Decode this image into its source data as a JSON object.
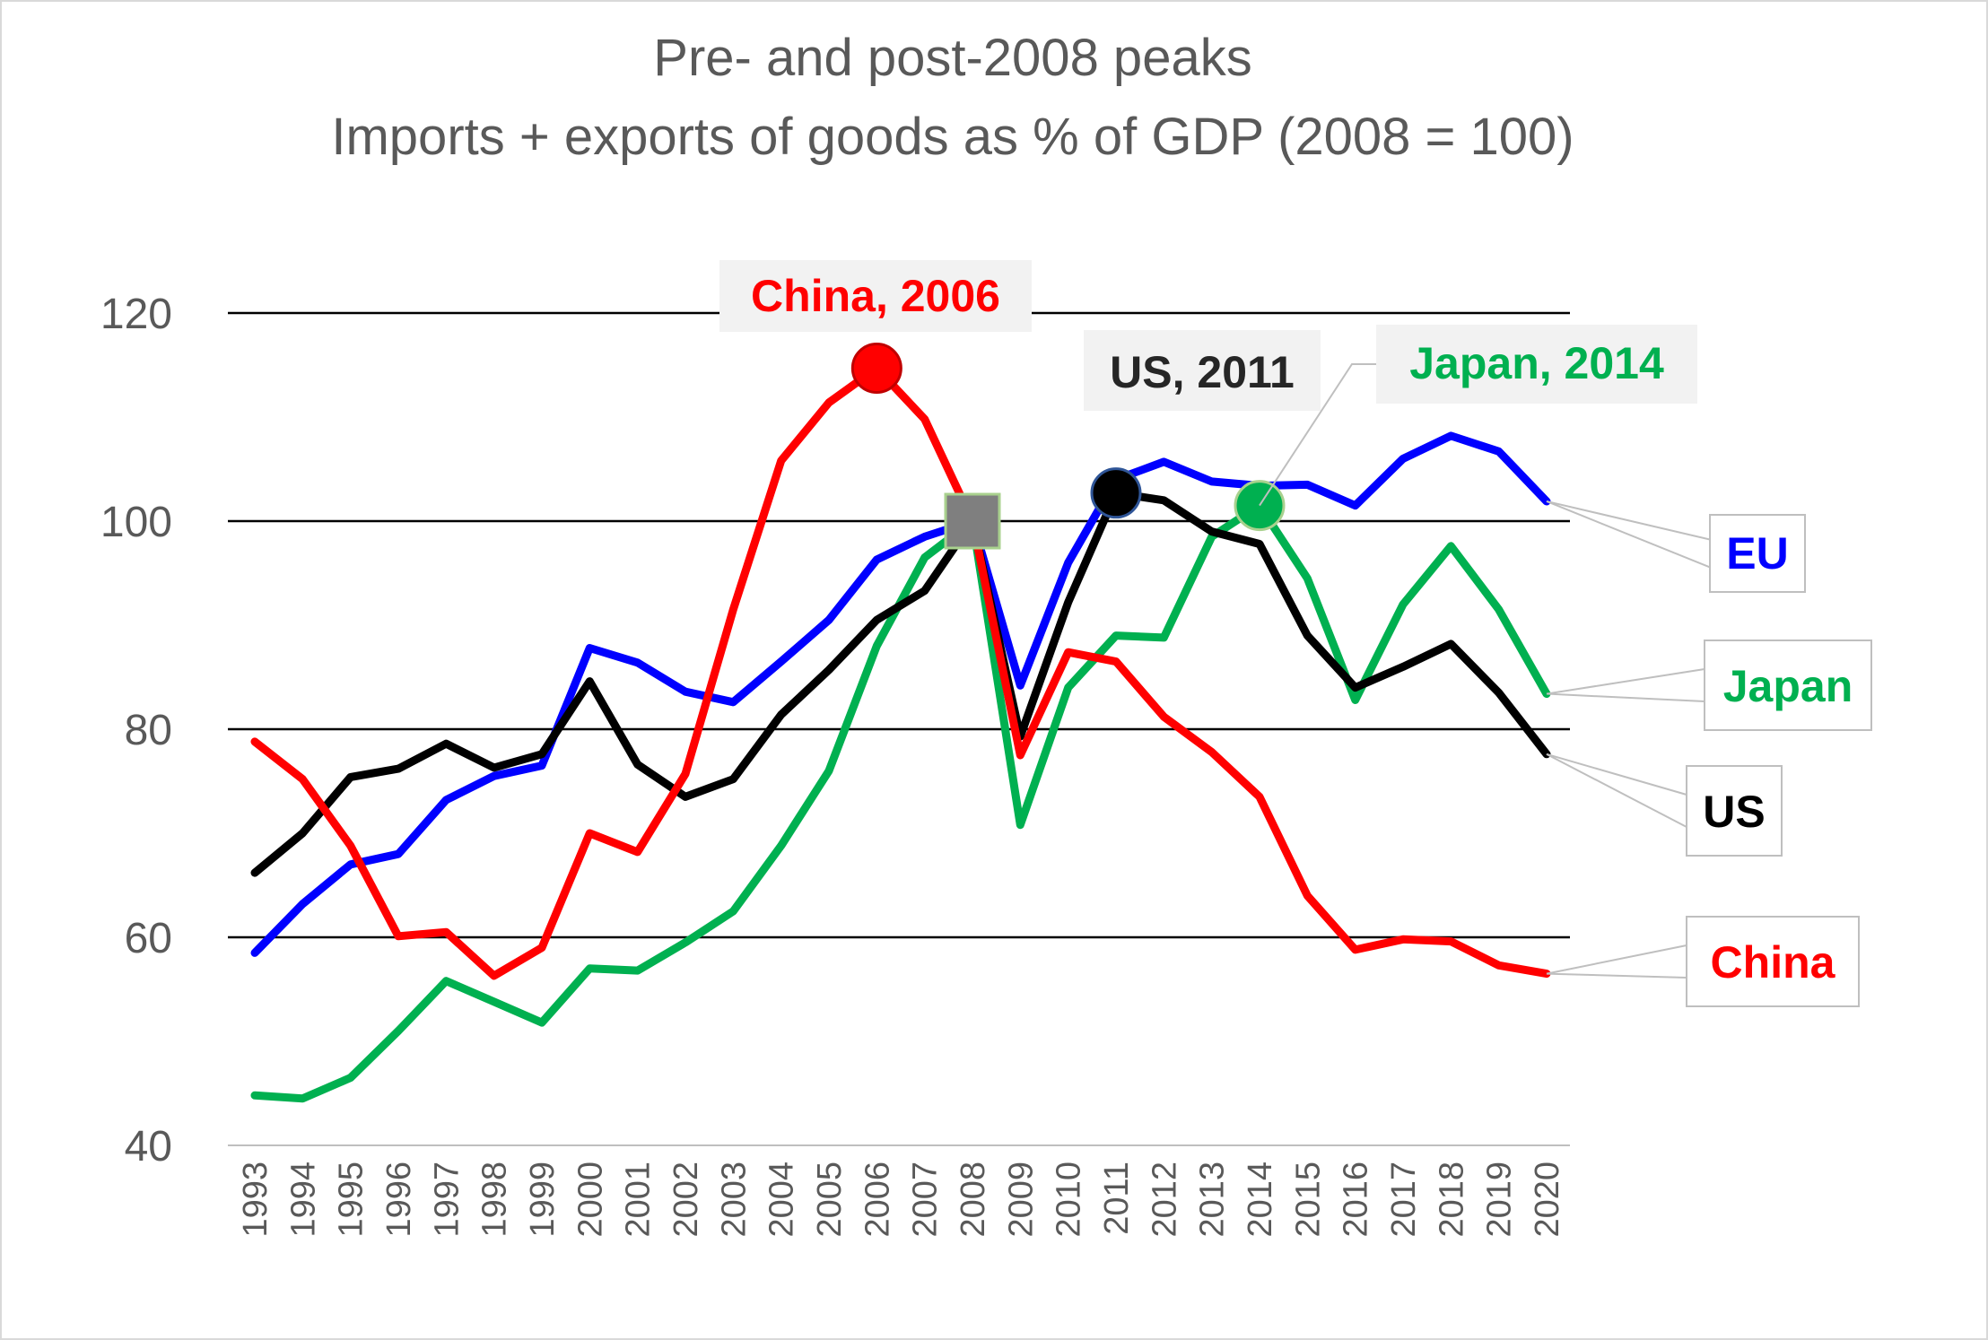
{
  "chart_data": {
    "type": "line",
    "title": "Pre- and post-2008 peaks",
    "subtitle": "Imports + exports of goods as % of GDP (2008 = 100)",
    "xlabel": "",
    "ylabel": "",
    "ylim": [
      40,
      120
    ],
    "yticks": [
      40,
      60,
      80,
      100,
      120
    ],
    "grid": true,
    "legend": "end-of-line labels",
    "x": [
      "1993",
      "1994",
      "1995",
      "1996",
      "1997",
      "1998",
      "1999",
      "2000",
      "2001",
      "2002",
      "2003",
      "2004",
      "2005",
      "2006",
      "2007",
      "2008",
      "2009",
      "2010",
      "2011",
      "2012",
      "2013",
      "2014",
      "2015",
      "2016",
      "2017",
      "2018",
      "2019",
      "2020"
    ],
    "series": [
      {
        "name": "EU",
        "color": "#0000ff",
        "values": [
          58.5,
          63.2,
          67.0,
          68.0,
          73.2,
          75.5,
          76.5,
          87.8,
          86.4,
          83.6,
          82.6,
          86.5,
          90.5,
          96.3,
          98.5,
          100,
          84.2,
          96.0,
          104.0,
          105.7,
          103.8,
          103.4,
          103.5,
          101.5,
          106.0,
          108.2,
          106.7,
          101.9
        ]
      },
      {
        "name": "Japan",
        "color": "#00b050",
        "values": [
          44.8,
          44.5,
          46.5,
          51.0,
          55.8,
          53.8,
          51.8,
          57.0,
          56.8,
          59.5,
          62.5,
          68.8,
          76.0,
          88.0,
          96.5,
          100,
          70.8,
          84.0,
          89.0,
          88.8,
          98.5,
          101.5,
          94.5,
          82.8,
          92.0,
          97.6,
          91.5,
          83.4
        ]
      },
      {
        "name": "US",
        "color": "#000000",
        "values": [
          66.2,
          70.0,
          75.4,
          76.2,
          78.6,
          76.3,
          77.6,
          84.6,
          76.6,
          73.5,
          75.2,
          81.4,
          85.7,
          90.5,
          93.3,
          100,
          79.3,
          92.2,
          102.7,
          102.0,
          99.0,
          97.8,
          89.0,
          84.0,
          86.0,
          88.2,
          83.5,
          77.6
        ]
      },
      {
        "name": "China",
        "color": "#ff0000",
        "values": [
          78.8,
          75.2,
          68.8,
          60.1,
          60.5,
          56.3,
          59.0,
          70.0,
          68.2,
          75.7,
          91.5,
          105.8,
          111.4,
          114.7,
          109.8,
          100,
          77.5,
          87.4,
          86.5,
          81.2,
          77.8,
          73.5,
          64.0,
          58.8,
          59.8,
          59.6,
          57.3,
          56.5
        ]
      }
    ],
    "annotations": [
      {
        "text": "China, 2006",
        "series": "China",
        "x": "2006",
        "y": 114.7,
        "color": "#ff0000"
      },
      {
        "text": "US, 2011",
        "series": "US",
        "x": "2011",
        "y": 102.7,
        "color": "#262626"
      },
      {
        "text": "Japan, 2014",
        "series": "Japan",
        "x": "2014",
        "y": 101.5,
        "color": "#00b050"
      }
    ],
    "base_marker": {
      "x": "2008",
      "y": 100,
      "color": "#7f7f7f"
    }
  }
}
